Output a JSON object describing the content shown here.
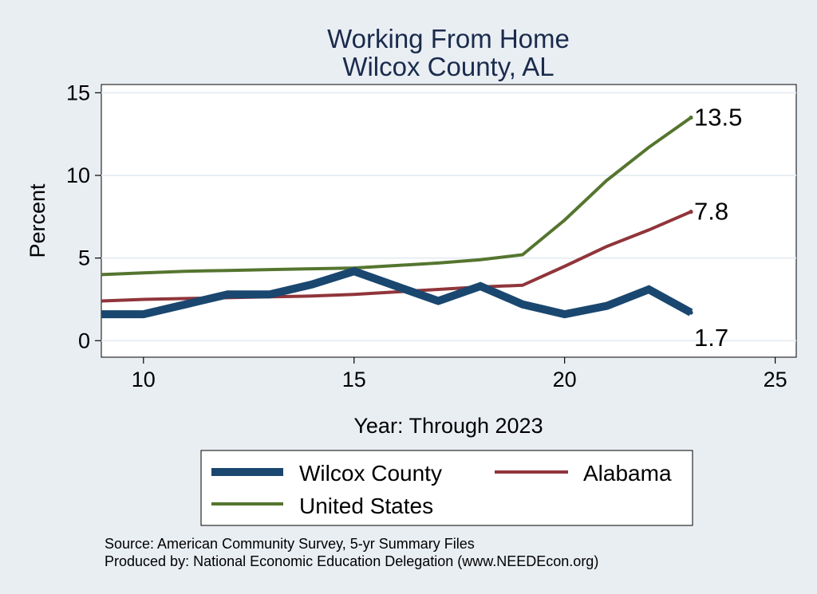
{
  "chart_data": {
    "type": "line",
    "title": [
      "Working From Home",
      "Wilcox County, AL"
    ],
    "xlabel": "Year: Through 2023",
    "ylabel": "Percent",
    "xlim": [
      9,
      25.5
    ],
    "ylim": [
      -1,
      15.5
    ],
    "xticks": [
      10,
      15,
      20,
      25
    ],
    "yticks": [
      0,
      5,
      10,
      15
    ],
    "grid": true,
    "x": [
      9,
      10,
      11,
      12,
      13,
      14,
      15,
      16,
      17,
      18,
      19,
      20,
      21,
      22,
      23
    ],
    "series": [
      {
        "name": "Wilcox County",
        "color": "#1a476f",
        "values": [
          1.6,
          1.6,
          2.2,
          2.8,
          2.8,
          3.4,
          4.2,
          3.3,
          2.4,
          3.3,
          2.2,
          1.6,
          2.1,
          3.1,
          1.7
        ],
        "end_label": "1.7"
      },
      {
        "name": "Alabama",
        "color": "#90353b",
        "values": [
          2.4,
          2.5,
          2.55,
          2.6,
          2.65,
          2.7,
          2.8,
          2.95,
          3.1,
          3.25,
          3.35,
          4.5,
          5.7,
          6.7,
          7.8
        ],
        "end_label": "7.8"
      },
      {
        "name": "United States",
        "color": "#55752f",
        "values": [
          4.0,
          4.1,
          4.2,
          4.25,
          4.3,
          4.35,
          4.4,
          4.55,
          4.7,
          4.9,
          5.2,
          7.3,
          9.7,
          11.7,
          13.5
        ],
        "end_label": "13.5"
      }
    ],
    "legend_position": "bottom",
    "source_lines": [
      "Source: American Community Survey, 5-yr Summary Files",
      "Produced by: National Economic Education Delegation (www.NEEDEcon.org)"
    ]
  }
}
